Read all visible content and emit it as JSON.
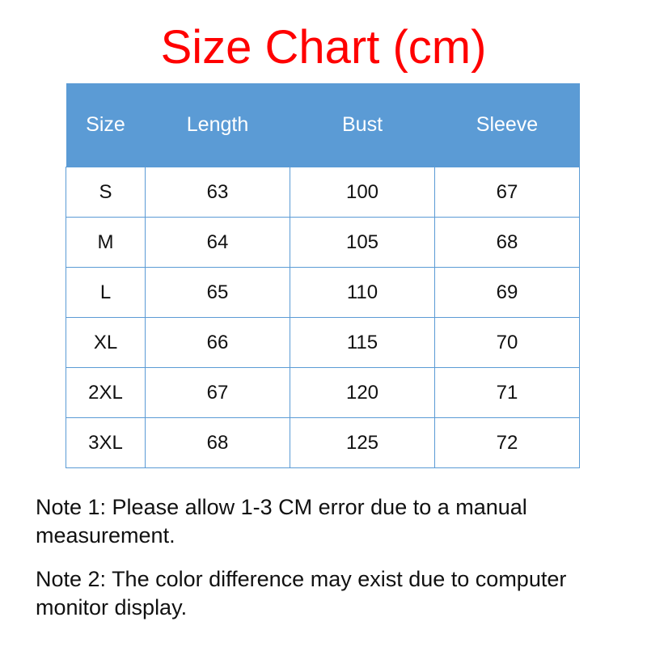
{
  "title": "Size Chart (cm)",
  "colors": {
    "title": "#ff0000",
    "header_bg": "#5b9bd5",
    "border": "#5b9bd5"
  },
  "chart_data": {
    "type": "table",
    "title": "Size Chart (cm)",
    "columns": [
      "Size",
      "Length",
      "Bust",
      "Sleeve"
    ],
    "rows": [
      [
        "S",
        "63",
        "100",
        "67"
      ],
      [
        "M",
        "64",
        "105",
        "68"
      ],
      [
        "L",
        "65",
        "110",
        "69"
      ],
      [
        "XL",
        "66",
        "115",
        "70"
      ],
      [
        "2XL",
        "67",
        "120",
        "71"
      ],
      [
        "3XL",
        "68",
        "125",
        "72"
      ]
    ]
  },
  "notes": [
    "Note 1: Please allow 1-3 CM error due to a manual measurement.",
    "Note 2: The color difference may exist due to computer monitor display."
  ]
}
